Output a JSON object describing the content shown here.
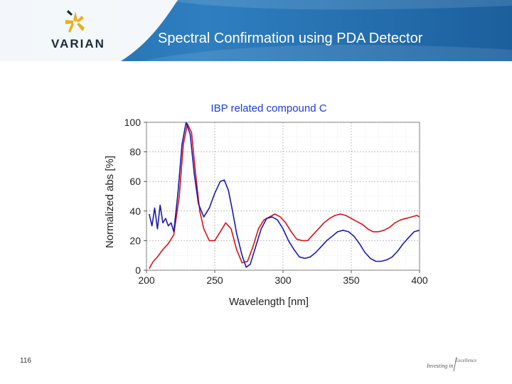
{
  "header": {
    "logo_text": "VARIAN",
    "title": "Spectral Confirmation using PDA Detector"
  },
  "footer": {
    "page_number": "116",
    "tagline_left": "Investing in",
    "tagline_right": "Excellence"
  },
  "colors": {
    "header_blue": "#2a78b8",
    "title_blue": "#1a3fd6",
    "series_red": "#d0141c",
    "series_blue": "#1a1aa8",
    "logo_gold": "#e8b21a"
  },
  "chart_data": {
    "type": "line",
    "title": "IBP related compound C",
    "xlabel": "Wavelength [nm]",
    "ylabel": "Normalized abs [%]",
    "xlim": [
      200,
      400
    ],
    "ylim": [
      0,
      100
    ],
    "xticks": [
      200,
      250,
      300,
      350,
      400
    ],
    "yticks": [
      0,
      20,
      40,
      60,
      80,
      100
    ],
    "grid": true,
    "series": [
      {
        "color": "#d0141c",
        "x": [
          202,
          205,
          208,
          212,
          216,
          220,
          224,
          227,
          230,
          233,
          236,
          239,
          242,
          246,
          250,
          254,
          258,
          262,
          266,
          270,
          274,
          278,
          282,
          286,
          290,
          294,
          298,
          302,
          306,
          310,
          314,
          318,
          322,
          326,
          330,
          334,
          338,
          342,
          346,
          350,
          354,
          358,
          362,
          366,
          370,
          374,
          378,
          382,
          386,
          390,
          394,
          398,
          400
        ],
        "y": [
          1,
          6,
          9,
          14,
          18,
          24,
          50,
          85,
          99,
          93,
          65,
          40,
          28,
          20,
          20,
          26,
          32,
          28,
          14,
          5,
          6,
          16,
          28,
          34,
          36,
          38,
          36,
          32,
          26,
          21,
          20,
          20,
          24,
          28,
          32,
          35,
          37,
          38,
          37,
          35,
          33,
          31,
          28,
          26,
          26,
          27,
          29,
          32,
          34,
          35,
          36,
          37,
          36
        ]
      },
      {
        "color": "#1a1aa8",
        "x": [
          202,
          204,
          206,
          208,
          210,
          212,
          214,
          216,
          218,
          220,
          223,
          226,
          229,
          232,
          235,
          238,
          242,
          246,
          250,
          254,
          257,
          260,
          263,
          266,
          270,
          273,
          276,
          280,
          284,
          288,
          292,
          296,
          300,
          304,
          308,
          312,
          316,
          320,
          324,
          328,
          332,
          336,
          340,
          344,
          348,
          352,
          356,
          360,
          364,
          368,
          372,
          376,
          380,
          384,
          388,
          392,
          396,
          400
        ],
        "y": [
          38,
          30,
          42,
          28,
          44,
          32,
          35,
          30,
          32,
          26,
          52,
          85,
          100,
          92,
          65,
          45,
          36,
          42,
          52,
          60,
          61,
          54,
          40,
          25,
          10,
          2,
          4,
          16,
          28,
          35,
          36,
          34,
          28,
          20,
          14,
          9,
          8,
          9,
          12,
          16,
          20,
          23,
          26,
          27,
          26,
          23,
          18,
          12,
          8,
          6,
          6,
          7,
          9,
          13,
          18,
          22,
          26,
          27
        ]
      }
    ]
  }
}
